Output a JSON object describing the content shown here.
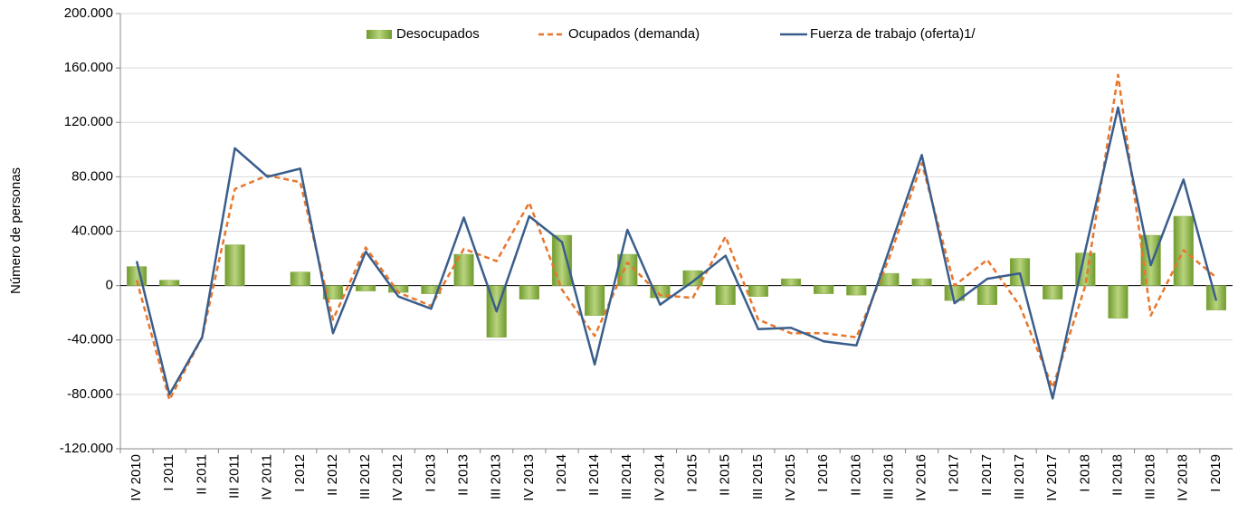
{
  "chart_data": {
    "type": "bar_line",
    "y_label": "Número de personas",
    "categories": [
      "IV 2010",
      "I 2011",
      "II 2011",
      "III 2011",
      "IV 2011",
      "I 2012",
      "II 2012",
      "III 2012",
      "IV 2012",
      "I 2013",
      "II 2013",
      "III 2013",
      "IV 2013",
      "I 2014",
      "II 2014",
      "III 2014",
      "IV 2014",
      "I 2015",
      "II 2015",
      "III 2015",
      "IV 2015",
      "I 2016",
      "II 2016",
      "III 2016",
      "IV 2016",
      "I 2017",
      "II 2017",
      "III 2017",
      "IV 2017",
      "I 2018",
      "II 2018",
      "III 2018",
      "IV 2018",
      "I 2019"
    ],
    "series": [
      {
        "name": "Desocupados",
        "color": "#8db04a",
        "kind": "bar",
        "values": [
          14000,
          4000,
          0,
          30000,
          0,
          10000,
          -10000,
          -4000,
          -5000,
          -6000,
          23000,
          -38000,
          -10000,
          37000,
          -22000,
          23000,
          -9000,
          11000,
          -14000,
          -8000,
          5000,
          -6000,
          -7000,
          9000,
          5000,
          -11000,
          -14000,
          20000,
          -10000,
          24000,
          -24000,
          37000,
          51000,
          -18000
        ]
      },
      {
        "name": "Ocupados (demanda)",
        "color": "#e8762c",
        "kind": "dashed-line",
        "values": [
          4000,
          -84000,
          -38000,
          71000,
          81000,
          76000,
          -25000,
          28000,
          -5000,
          -15000,
          27000,
          18000,
          61000,
          -3000,
          -37000,
          17000,
          -7000,
          -9000,
          36000,
          -25000,
          -35000,
          -35000,
          -38000,
          20000,
          90000,
          0,
          19000,
          -15000,
          -75000,
          0,
          155000,
          -22000,
          26000,
          6000
        ]
      },
      {
        "name": "Fuerza de trabajo (oferta)1/",
        "color": "#3a5e8c",
        "kind": "line",
        "values": [
          18000,
          -80000,
          -38000,
          101000,
          80000,
          86000,
          -35000,
          25000,
          -8000,
          -17000,
          50000,
          -19000,
          51000,
          32000,
          -58000,
          41000,
          -14000,
          3000,
          22000,
          -32000,
          -31000,
          -41000,
          -44000,
          26000,
          96000,
          -13000,
          5000,
          9000,
          -83000,
          26000,
          131000,
          15000,
          78000,
          -11000
        ]
      }
    ],
    "ylim": [
      -120000,
      200000
    ],
    "yticks": [
      {
        "value": -120000,
        "label": "-120.000"
      },
      {
        "value": -80000,
        "label": "-80.000"
      },
      {
        "value": -40000,
        "label": "-40.000"
      },
      0,
      {
        "value": 40000,
        "label": "40.000"
      },
      {
        "value": 80000,
        "label": "80.000"
      },
      {
        "value": 120000,
        "label": "120.000"
      },
      {
        "value": 160000,
        "label": "160.000"
      },
      {
        "value": 200000,
        "label": "200.000"
      }
    ],
    "grid": true,
    "legend": "top"
  }
}
